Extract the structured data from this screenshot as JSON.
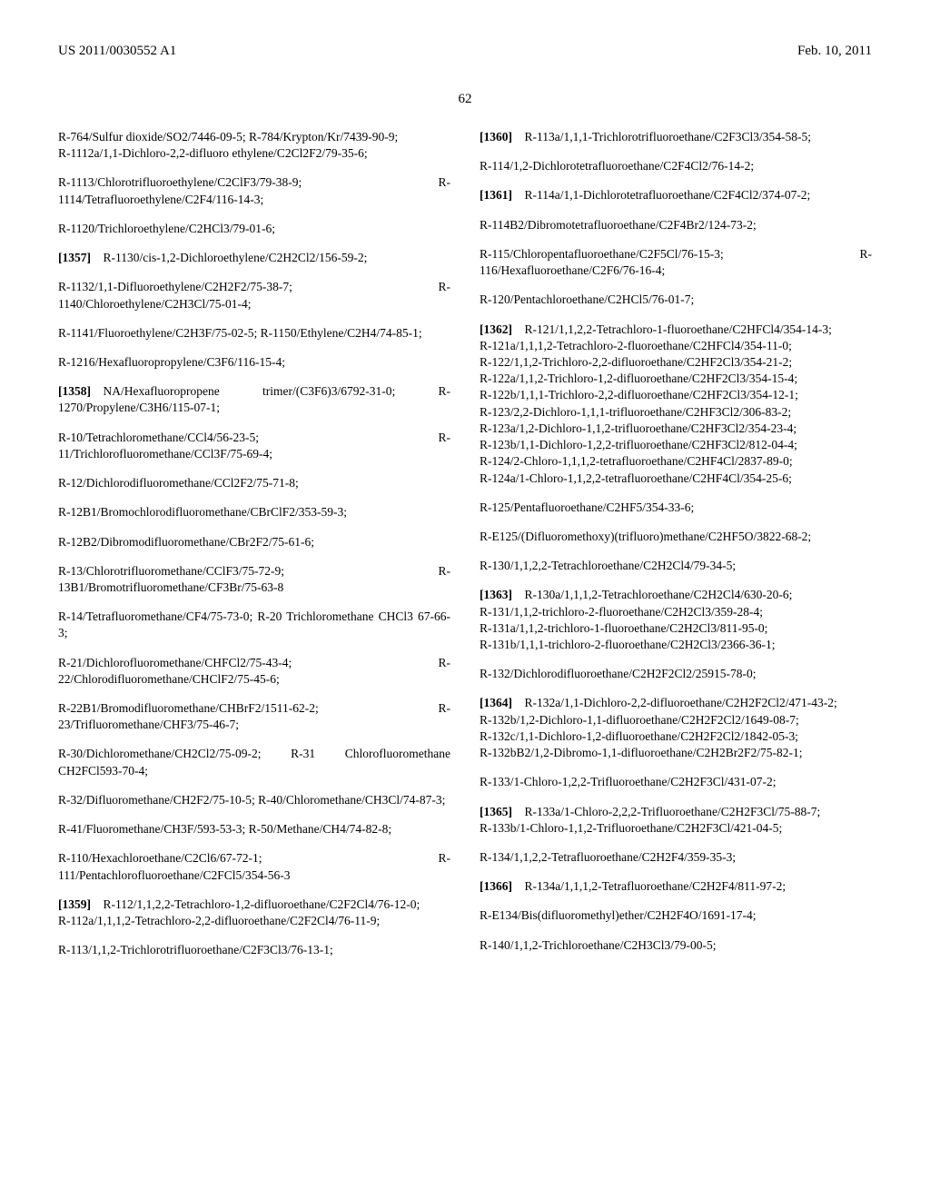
{
  "header": {
    "left": "US 2011/0030552 A1",
    "right": "Feb. 10, 2011"
  },
  "page_number": "62",
  "entries": [
    {
      "t": "R-764/Sulfur dioxide/SO2/7446-09-5; R-784/Krypton/Kr/7439-90-9;\nR-1112a/1,1-Dichloro-2,2-difluoro ethylene/C2Cl2F2/79-35-6;"
    },
    {
      "t": "R-1113/Chlorotrifluoroethylene/C2ClF3/79-38-9; R-1114/Tetrafluoroethylene/C2F4/116-14-3;"
    },
    {
      "t": "R-1120/Trichloroethylene/C2HCl3/79-01-6;"
    },
    {
      "n": "[1357]",
      "t": "R-1130/cis-1,2-Dichloroethylene/C2H2Cl2/156-59-2;"
    },
    {
      "t": "R-1132/1,1-Difluoroethylene/C2H2F2/75-38-7; R-1140/Chloroethylene/C2H3Cl/75-01-4;"
    },
    {
      "t": "R-1141/Fluoroethylene/C2H3F/75-02-5; R-1150/Ethylene/C2H4/74-85-1;"
    },
    {
      "t": "R-1216/Hexafluoropropylene/C3F6/116-15-4;"
    },
    {
      "n": "[1358]",
      "t": "NA/Hexafluoropropene trimer/(C3F6)3/6792-31-0; R-1270/Propylene/C3H6/115-07-1;"
    },
    {
      "t": "R-10/Tetrachloromethane/CCl4/56-23-5; R-11/Trichlorofluoromethane/CCl3F/75-69-4;"
    },
    {
      "t": "R-12/Dichlorodifluoromethane/CCl2F2/75-71-8;"
    },
    {
      "t": "R-12B1/Bromochlorodifluoromethane/CBrClF2/353-59-3;"
    },
    {
      "t": "R-12B2/Dibromodifluoromethane/CBr2F2/75-61-6;"
    },
    {
      "t": "R-13/Chlorotrifluoromethane/CClF3/75-72-9; R-13B1/Bromotrifluoromethane/CF3Br/75-63-8"
    },
    {
      "t": "R-14/Tetrafluoromethane/CF4/75-73-0; R-20 Trichloromethane CHCl3 67-66-3;"
    },
    {
      "t": "R-21/Dichlorofluoromethane/CHFCl2/75-43-4; R-22/Chlorodifluoromethane/CHClF2/75-45-6;"
    },
    {
      "t": "R-22B1/Bromodifluoromethane/CHBrF2/1511-62-2; R-23/Trifluoromethane/CHF3/75-46-7;"
    },
    {
      "t": "R-30/Dichloromethane/CH2Cl2/75-09-2; R-31 Chlorofluoromethane CH2FCl593-70-4;"
    },
    {
      "t": "R-32/Difluoromethane/CH2F2/75-10-5; R-40/Chloromethane/CH3Cl/74-87-3;"
    },
    {
      "t": "R-41/Fluoromethane/CH3F/593-53-3; R-50/Methane/CH4/74-82-8;"
    },
    {
      "t": "R-110/Hexachloroethane/C2Cl6/67-72-1; R-111/Pentachlorofluoroethane/C2FCl5/354-56-3"
    },
    {
      "n": "[1359]",
      "t": "R-112/1,1,2,2-Tetrachloro-1,2-difluoroethane/C2F2Cl4/76-12-0;\nR-112a/1,1,1,2-Tetrachloro-2,2-difluoroethane/C2F2Cl4/76-11-9;"
    },
    {
      "t": "R-113/1,1,2-Trichlorotrifluoroethane/C2F3Cl3/76-13-1;"
    },
    {
      "n": "[1360]",
      "t": "R-113a/1,1,1-Trichlorotrifluoroethane/C2F3Cl3/354-58-5;"
    },
    {
      "t": "R-114/1,2-Dichlorotetrafluoroethane/C2F4Cl2/76-14-2;"
    },
    {
      "n": "[1361]",
      "t": "R-114a/1,1-Dichlorotetrafluoroethane/C2F4Cl2/374-07-2;"
    },
    {
      "t": "R-114B2/Dibromotetrafluoroethane/C2F4Br2/124-73-2;"
    },
    {
      "t": "R-115/Chloropentafluoroethane/C2F5Cl/76-15-3; R-116/Hexafluoroethane/C2F6/76-16-4;"
    },
    {
      "t": "R-120/Pentachloroethane/C2HCl5/76-01-7;"
    },
    {
      "n": "[1362]",
      "t": "R-121/1,1,2,2-Tetrachloro-1-fluoroethane/C2HFCl4/354-14-3;\nR-121a/1,1,1,2-Tetrachloro-2-fluoroethane/C2HFCl4/354-11-0;\nR-122/1,1,2-Trichloro-2,2-difluoroethane/C2HF2Cl3/354-21-2;\nR-122a/1,1,2-Trichloro-1,2-difluoroethane/C2HF2Cl3/354-15-4;\nR-122b/1,1,1-Trichloro-2,2-difluoroethane/C2HF2Cl3/354-12-1;\nR-123/2,2-Dichloro-1,1,1-trifluoroethane/C2HF3Cl2/306-83-2;\nR-123a/1,2-Dichloro-1,1,2-trifluoroethane/C2HF3Cl2/354-23-4;\nR-123b/1,1-Dichloro-1,2,2-trifluoroethane/C2HF3Cl2/812-04-4;\nR-124/2-Chloro-1,1,1,2-tetrafluoroethane/C2HF4Cl/2837-89-0;\nR-124a/1-Chloro-1,1,2,2-tetrafluoroethane/C2HF4Cl/354-25-6;"
    },
    {
      "t": "R-125/Pentafluoroethane/C2HF5/354-33-6;"
    },
    {
      "t": "R-E125/(Difluoromethoxy)(trifluoro)methane/C2HF5O/3822-68-2;"
    },
    {
      "t": "R-130/1,1,2,2-Tetrachloroethane/C2H2Cl4/79-34-5;"
    },
    {
      "n": "[1363]",
      "t": "R-130a/1,1,1,2-Tetrachloroethane/C2H2Cl4/630-20-6;\nR-131/1,1,2-trichloro-2-fluoroethane/C2H2Cl3/359-28-4;\nR-131a/1,1,2-trichloro-1-fluoroethane/C2H2Cl3/811-95-0;\nR-131b/1,1,1-trichloro-2-fluoroethane/C2H2Cl3/2366-36-1;"
    },
    {
      "t": "R-132/Dichlorodifluoroethane/C2H2F2Cl2/25915-78-0;"
    },
    {
      "n": "[1364]",
      "t": "R-132a/1,1-Dichloro-2,2-difluoroethane/C2H2F2Cl2/471-43-2;\nR-132b/1,2-Dichloro-1,1-difluoroethane/C2H2F2Cl2/1649-08-7;\nR-132c/1,1-Dichloro-1,2-difluoroethane/C2H2F2Cl2/1842-05-3;\nR-132bB2/1,2-Dibromo-1,1-difluoroethane/C2H2Br2F2/75-82-1;"
    },
    {
      "t": "R-133/1-Chloro-1,2,2-Trifluoroethane/C2H2F3Cl/431-07-2;"
    },
    {
      "n": "[1365]",
      "t": "R-133a/1-Chloro-2,2,2-Trifluoroethane/C2H2F3Cl/75-88-7;\nR-133b/1-Chloro-1,1,2-Trifluoroethane/C2H2F3Cl/421-04-5;"
    },
    {
      "t": "R-134/1,1,2,2-Tetrafluoroethane/C2H2F4/359-35-3;"
    },
    {
      "n": "[1366]",
      "t": "R-134a/1,1,1,2-Tetrafluoroethane/C2H2F4/811-97-2;"
    },
    {
      "t": "R-E134/Bis(difluoromethyl)ether/C2H2F4O/1691-17-4;"
    },
    {
      "t": "R-140/1,1,2-Trichloroethane/C2H3Cl3/79-00-5;"
    }
  ]
}
